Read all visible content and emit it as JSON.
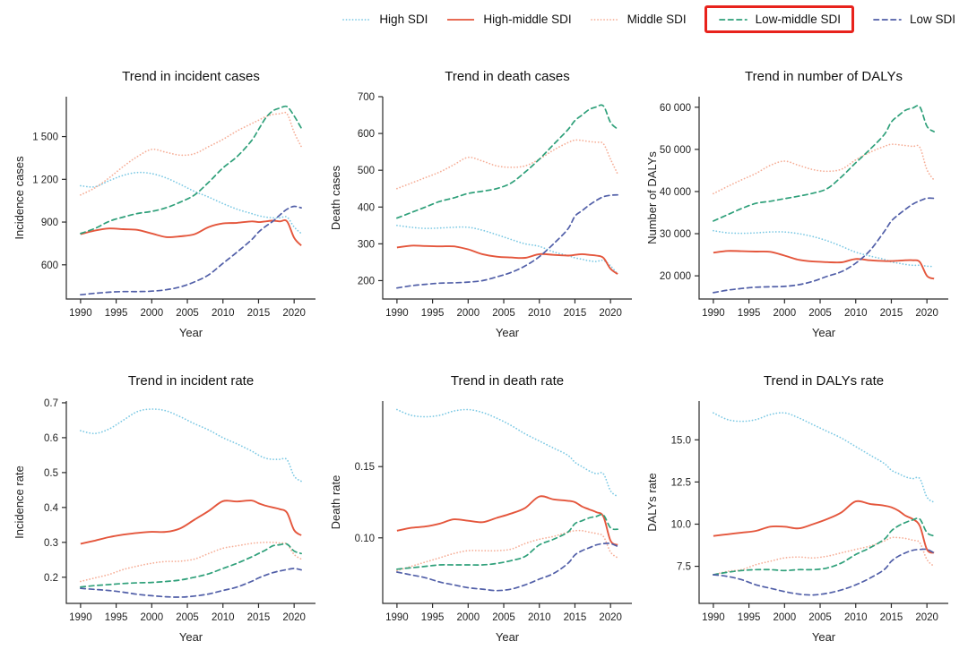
{
  "page": {
    "background": "#ffffff"
  },
  "legend": {
    "highlight_color": "#e8221c",
    "items": [
      {
        "label": "High SDI",
        "color": "#7cc9e4",
        "style": "dotted",
        "highlighted": false
      },
      {
        "label": "High-middle SDI",
        "color": "#e4563c",
        "style": "solid",
        "highlighted": false
      },
      {
        "label": "Middle SDI",
        "color": "#f6ae97",
        "style": "dotted",
        "highlighted": false
      },
      {
        "label": "Low-middle SDI",
        "color": "#2fa07a",
        "style": "dashed",
        "highlighted": true
      },
      {
        "label": "Low SDI",
        "color": "#515fa8",
        "style": "dashed",
        "highlighted": false
      }
    ]
  },
  "years": [
    1990,
    1992,
    1994,
    1996,
    1998,
    2000,
    2002,
    2004,
    2006,
    2008,
    2010,
    2012,
    2014,
    2015,
    2016,
    2017,
    2018,
    2019,
    2020,
    2021
  ],
  "chart_data": [
    {
      "type": "line",
      "title": "Trend in incident cases",
      "xlabel": "Year",
      "ylabel": "Incidence cases",
      "xlim": [
        1988,
        2023
      ],
      "ylim": [
        360,
        1780
      ],
      "xticks": [
        1990,
        1995,
        2000,
        2005,
        2010,
        2015,
        2020
      ],
      "yticks": [
        600,
        900,
        1200,
        1500
      ],
      "ytick_labels": [
        "600",
        "900",
        "1 200",
        "1 500"
      ],
      "legend_position": "top",
      "grid": false,
      "series": [
        {
          "name": "High SDI",
          "values": [
            1155,
            1148,
            1190,
            1228,
            1248,
            1240,
            1210,
            1165,
            1115,
            1075,
            1030,
            990,
            960,
            945,
            935,
            930,
            930,
            935,
            865,
            820
          ]
        },
        {
          "name": "High-middle SDI",
          "values": [
            815,
            840,
            855,
            850,
            845,
            820,
            795,
            800,
            815,
            865,
            890,
            895,
            905,
            900,
            905,
            910,
            905,
            905,
            790,
            735
          ]
        },
        {
          "name": "Middle SDI",
          "values": [
            1090,
            1140,
            1210,
            1290,
            1360,
            1410,
            1390,
            1370,
            1380,
            1430,
            1480,
            1540,
            1590,
            1615,
            1640,
            1655,
            1660,
            1660,
            1530,
            1430
          ]
        },
        {
          "name": "Low-middle SDI",
          "values": [
            820,
            855,
            905,
            935,
            960,
            975,
            1000,
            1040,
            1090,
            1180,
            1280,
            1360,
            1470,
            1550,
            1630,
            1680,
            1700,
            1710,
            1645,
            1560
          ]
        },
        {
          "name": "Low SDI",
          "values": [
            390,
            400,
            408,
            412,
            412,
            415,
            425,
            445,
            480,
            530,
            610,
            690,
            775,
            830,
            870,
            905,
            950,
            990,
            1010,
            1000
          ]
        }
      ]
    },
    {
      "type": "line",
      "title": "Trend in death cases",
      "xlabel": "Year",
      "ylabel": "Death cases",
      "xlim": [
        1988,
        2023
      ],
      "ylim": [
        150,
        700
      ],
      "xticks": [
        1990,
        1995,
        2000,
        2005,
        2010,
        2015,
        2020
      ],
      "yticks": [
        200,
        300,
        400,
        500,
        600,
        700
      ],
      "ytick_labels": [
        "200",
        "300",
        "400",
        "500",
        "600",
        "700"
      ],
      "legend_position": "top",
      "grid": false,
      "series": [
        {
          "name": "High SDI",
          "values": [
            350,
            345,
            342,
            343,
            345,
            345,
            337,
            325,
            312,
            300,
            293,
            278,
            268,
            262,
            258,
            254,
            252,
            255,
            240,
            218
          ]
        },
        {
          "name": "High-middle SDI",
          "values": [
            290,
            295,
            294,
            293,
            293,
            285,
            272,
            265,
            263,
            262,
            272,
            270,
            268,
            270,
            272,
            270,
            268,
            262,
            232,
            218
          ]
        },
        {
          "name": "Middle SDI",
          "values": [
            450,
            465,
            480,
            495,
            515,
            535,
            525,
            512,
            508,
            512,
            530,
            555,
            575,
            582,
            581,
            578,
            576,
            572,
            530,
            490
          ]
        },
        {
          "name": "Low-middle SDI",
          "values": [
            370,
            385,
            400,
            415,
            425,
            437,
            443,
            450,
            465,
            495,
            530,
            570,
            610,
            635,
            650,
            665,
            672,
            675,
            630,
            612
          ]
        },
        {
          "name": "Low SDI",
          "values": [
            180,
            186,
            190,
            193,
            194,
            196,
            200,
            210,
            222,
            240,
            265,
            300,
            340,
            375,
            390,
            405,
            418,
            428,
            432,
            433
          ]
        }
      ]
    },
    {
      "type": "line",
      "title": "Trend in number of DALYs",
      "xlabel": "Year",
      "ylabel": "Number of DALYs",
      "xlim": [
        1988,
        2023
      ],
      "ylim": [
        14500,
        62500
      ],
      "xticks": [
        1990,
        1995,
        2000,
        2005,
        2010,
        2015,
        2020
      ],
      "yticks": [
        20000,
        30000,
        40000,
        50000,
        60000
      ],
      "ytick_labels": [
        "20 000",
        "30 000",
        "40 000",
        "50 000",
        "60 000"
      ],
      "legend_position": "top",
      "grid": false,
      "series": [
        {
          "name": "High SDI",
          "values": [
            30700,
            30200,
            30100,
            30200,
            30400,
            30400,
            30000,
            29300,
            28300,
            27000,
            25600,
            24700,
            23900,
            23300,
            23000,
            22700,
            22500,
            22500,
            22300,
            22200
          ]
        },
        {
          "name": "High-middle SDI",
          "values": [
            25500,
            25900,
            25850,
            25750,
            25700,
            24800,
            23800,
            23400,
            23250,
            23200,
            24000,
            23700,
            23500,
            23500,
            23600,
            23700,
            23700,
            23300,
            20000,
            19300
          ]
        },
        {
          "name": "Middle SDI",
          "values": [
            39500,
            41200,
            42800,
            44300,
            46200,
            47200,
            46200,
            45200,
            44800,
            45300,
            47500,
            49300,
            50700,
            51200,
            51100,
            50900,
            50700,
            50500,
            45200,
            42700
          ]
        },
        {
          "name": "Low-middle SDI",
          "values": [
            33000,
            34500,
            36000,
            37200,
            37700,
            38300,
            38900,
            39600,
            40700,
            43500,
            46800,
            50000,
            53500,
            56500,
            58000,
            59300,
            59800,
            60100,
            55500,
            54200
          ]
        },
        {
          "name": "Low SDI",
          "values": [
            16000,
            16600,
            17000,
            17300,
            17400,
            17500,
            17900,
            18700,
            19900,
            21000,
            23000,
            26000,
            30500,
            33000,
            34500,
            35800,
            37000,
            37800,
            38400,
            38400
          ]
        }
      ]
    },
    {
      "type": "line",
      "title": "Trend in incident rate",
      "xlabel": "Year",
      "ylabel": "Incidence rate",
      "xlim": [
        1988,
        2023
      ],
      "ylim": [
        0.125,
        0.705
      ],
      "xticks": [
        1990,
        1995,
        2000,
        2005,
        2010,
        2015,
        2020
      ],
      "yticks": [
        0.2,
        0.3,
        0.4,
        0.5,
        0.6,
        0.7
      ],
      "ytick_labels": [
        "0.2",
        "0.3",
        "0.4",
        "0.5",
        "0.6",
        "0.7"
      ],
      "legend_position": "top",
      "grid": false,
      "series": [
        {
          "name": "High SDI",
          "values": [
            0.62,
            0.612,
            0.625,
            0.65,
            0.675,
            0.682,
            0.677,
            0.66,
            0.64,
            0.622,
            0.6,
            0.582,
            0.562,
            0.55,
            0.541,
            0.538,
            0.538,
            0.537,
            0.49,
            0.475
          ]
        },
        {
          "name": "High-middle SDI",
          "values": [
            0.296,
            0.305,
            0.315,
            0.322,
            0.327,
            0.33,
            0.33,
            0.34,
            0.365,
            0.39,
            0.418,
            0.417,
            0.42,
            0.412,
            0.405,
            0.4,
            0.395,
            0.385,
            0.335,
            0.32
          ]
        },
        {
          "name": "Middle SDI",
          "values": [
            0.188,
            0.198,
            0.208,
            0.222,
            0.232,
            0.24,
            0.245,
            0.246,
            0.252,
            0.268,
            0.283,
            0.29,
            0.297,
            0.299,
            0.3,
            0.3,
            0.298,
            0.295,
            0.265,
            0.252
          ]
        },
        {
          "name": "Low-middle SDI",
          "values": [
            0.172,
            0.176,
            0.179,
            0.182,
            0.184,
            0.185,
            0.188,
            0.192,
            0.2,
            0.21,
            0.225,
            0.24,
            0.258,
            0.268,
            0.278,
            0.29,
            0.293,
            0.295,
            0.275,
            0.268
          ]
        },
        {
          "name": "Low SDI",
          "values": [
            0.168,
            0.165,
            0.162,
            0.157,
            0.151,
            0.147,
            0.144,
            0.143,
            0.146,
            0.152,
            0.162,
            0.172,
            0.188,
            0.198,
            0.206,
            0.213,
            0.218,
            0.222,
            0.225,
            0.221
          ]
        }
      ]
    },
    {
      "type": "line",
      "title": "Trend in death rate",
      "xlabel": "Year",
      "ylabel": "Death rate",
      "xlim": [
        1988,
        2023
      ],
      "ylim": [
        0.054,
        0.196
      ],
      "xticks": [
        1990,
        1995,
        2000,
        2005,
        2010,
        2015,
        2020
      ],
      "yticks": [
        0.1,
        0.15
      ],
      "ytick_labels": [
        "0.10",
        "0.15"
      ],
      "legend_position": "top",
      "grid": false,
      "series": [
        {
          "name": "High SDI",
          "values": [
            0.19,
            0.186,
            0.185,
            0.186,
            0.189,
            0.19,
            0.188,
            0.184,
            0.179,
            0.173,
            0.168,
            0.163,
            0.158,
            0.153,
            0.15,
            0.147,
            0.145,
            0.145,
            0.133,
            0.129
          ]
        },
        {
          "name": "High-middle SDI",
          "values": [
            0.105,
            0.107,
            0.108,
            0.11,
            0.113,
            0.112,
            0.111,
            0.114,
            0.117,
            0.121,
            0.129,
            0.127,
            0.126,
            0.125,
            0.122,
            0.12,
            0.118,
            0.115,
            0.098,
            0.095
          ]
        },
        {
          "name": "Middle SDI",
          "values": [
            0.077,
            0.08,
            0.083,
            0.086,
            0.089,
            0.091,
            0.091,
            0.091,
            0.092,
            0.096,
            0.099,
            0.101,
            0.104,
            0.105,
            0.105,
            0.104,
            0.103,
            0.101,
            0.09,
            0.086
          ]
        },
        {
          "name": "Low-middle SDI",
          "values": [
            0.078,
            0.079,
            0.08,
            0.081,
            0.081,
            0.081,
            0.081,
            0.082,
            0.084,
            0.087,
            0.095,
            0.099,
            0.104,
            0.11,
            0.112,
            0.114,
            0.115,
            0.116,
            0.107,
            0.106
          ]
        },
        {
          "name": "Low SDI",
          "values": [
            0.076,
            0.074,
            0.072,
            0.069,
            0.067,
            0.065,
            0.064,
            0.063,
            0.064,
            0.067,
            0.071,
            0.075,
            0.082,
            0.088,
            0.091,
            0.093,
            0.095,
            0.096,
            0.096,
            0.094
          ]
        }
      ]
    },
    {
      "type": "line",
      "title": "Trend in DALYs rate",
      "xlabel": "Year",
      "ylabel": "DALYs rate",
      "xlim": [
        1988,
        2023
      ],
      "ylim": [
        5.3,
        17.3
      ],
      "xticks": [
        1990,
        1995,
        2000,
        2005,
        2010,
        2015,
        2020
      ],
      "yticks": [
        7.5,
        10.0,
        12.5,
        15.0
      ],
      "ytick_labels": [
        "7.5",
        "10.0",
        "12.5",
        "15.0"
      ],
      "legend_position": "top",
      "grid": false,
      "series": [
        {
          "name": "High SDI",
          "values": [
            16.6,
            16.2,
            16.1,
            16.2,
            16.5,
            16.6,
            16.3,
            15.9,
            15.5,
            15.1,
            14.6,
            14.1,
            13.6,
            13.2,
            13.0,
            12.8,
            12.7,
            12.7,
            11.6,
            11.3
          ]
        },
        {
          "name": "High-middle SDI",
          "values": [
            9.3,
            9.4,
            9.5,
            9.6,
            9.85,
            9.85,
            9.75,
            10.0,
            10.3,
            10.7,
            11.35,
            11.2,
            11.1,
            11.0,
            10.8,
            10.5,
            10.3,
            9.9,
            8.5,
            8.3
          ]
        },
        {
          "name": "Middle SDI",
          "values": [
            7.0,
            7.2,
            7.3,
            7.6,
            7.8,
            8.0,
            8.05,
            8.0,
            8.1,
            8.3,
            8.5,
            8.7,
            9.0,
            9.2,
            9.2,
            9.15,
            9.05,
            8.9,
            7.9,
            7.5
          ]
        },
        {
          "name": "Low-middle SDI",
          "values": [
            7.0,
            7.15,
            7.25,
            7.3,
            7.3,
            7.25,
            7.3,
            7.3,
            7.4,
            7.7,
            8.2,
            8.6,
            9.1,
            9.6,
            9.9,
            10.1,
            10.25,
            10.3,
            9.5,
            9.3
          ]
        },
        {
          "name": "Low SDI",
          "values": [
            7.0,
            6.9,
            6.7,
            6.4,
            6.2,
            6.0,
            5.85,
            5.8,
            5.9,
            6.1,
            6.4,
            6.8,
            7.3,
            7.8,
            8.1,
            8.3,
            8.45,
            8.5,
            8.5,
            8.3
          ]
        }
      ]
    }
  ]
}
